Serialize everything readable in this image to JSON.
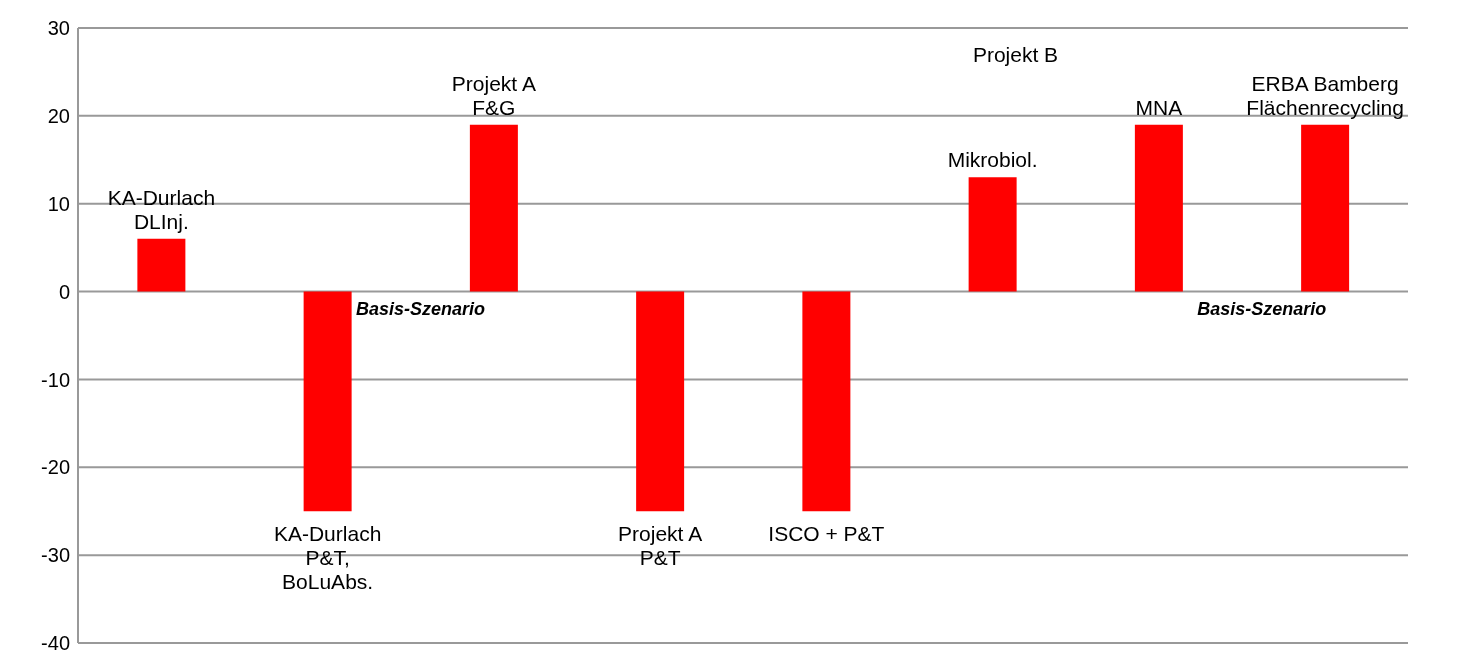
{
  "chart_data": {
    "type": "bar",
    "categories": [
      "KA-Durlach DLInj.",
      "KA-Durlach P&T, BoLuAbs.",
      "Projekt A F&G",
      "Projekt A P&T",
      "ISCO + P&T",
      "Mikrobiol.",
      "MNA",
      "ERBA Bamberg Flächenrecycling"
    ],
    "values": [
      6,
      -25,
      19,
      -25,
      -25,
      13,
      19,
      19
    ],
    "color": "#ff0000",
    "ylim": [
      -40,
      30
    ],
    "yticks": [
      -40,
      -30,
      -20,
      -10,
      0,
      10,
      20,
      30
    ],
    "grid": "y",
    "annotations": [
      "Projekt B",
      "Basis-Szenario",
      "Basis-Szenario"
    ]
  }
}
